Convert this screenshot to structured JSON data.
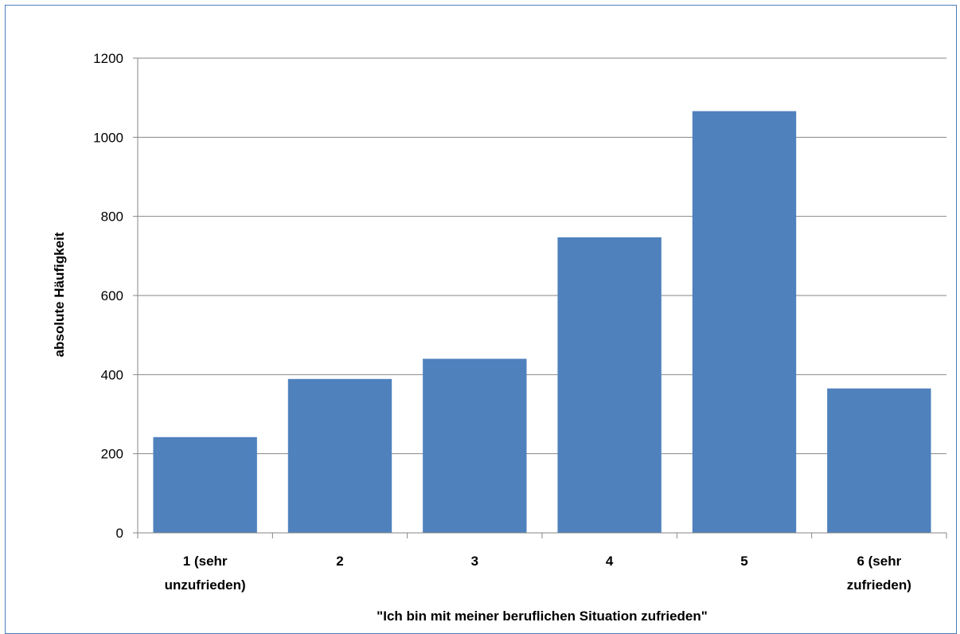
{
  "chart_data": {
    "type": "bar",
    "categories": [
      [
        "1 (sehr",
        "unzufrieden)"
      ],
      [
        "2"
      ],
      [
        "3"
      ],
      [
        "4"
      ],
      [
        "5"
      ],
      [
        "6 (sehr",
        "zufrieden)"
      ]
    ],
    "values": [
      242,
      389,
      440,
      747,
      1066,
      365
    ],
    "xlabel": "\"Ich bin mit meiner beruflichen Situation zufrieden\"",
    "ylabel": "absolute Häufigkeit",
    "ylim": [
      0,
      1200
    ],
    "yticks": [
      "0",
      "200",
      "400",
      "600",
      "800",
      "1000",
      "1200"
    ],
    "grid": true,
    "legend": "none",
    "bar_color": "#4f81bd"
  }
}
